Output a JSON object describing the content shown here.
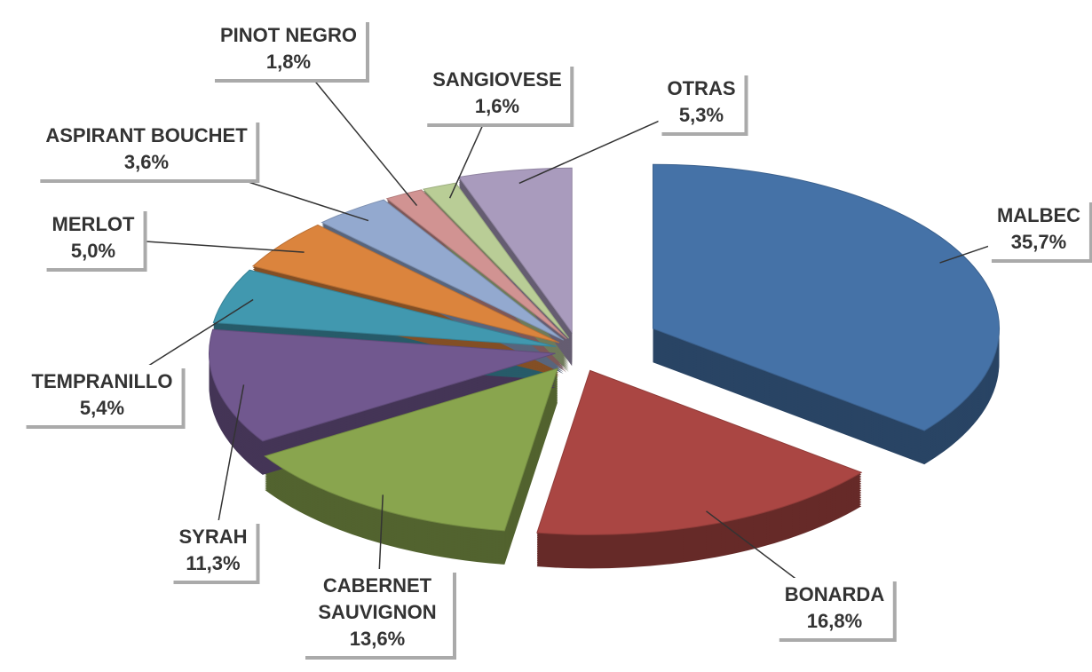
{
  "chart_data": {
    "type": "pie",
    "categories": [
      "MALBEC",
      "BONARDA",
      "CABERNET SAUVIGNON",
      "SYRAH",
      "TEMPRANILLO",
      "MERLOT",
      "ASPIRANT BOUCHET",
      "PINOT NEGRO",
      "SANGIOVESE",
      "OTRAS"
    ],
    "values": [
      35.7,
      16.8,
      13.6,
      11.3,
      5.4,
      5.0,
      3.6,
      1.8,
      1.6,
      5.3
    ],
    "value_labels": [
      "35,7%",
      "16,8%",
      "13,6%",
      "11,3%",
      "5,4%",
      "5,0%",
      "3,6%",
      "1,8%",
      "1,6%",
      "5,3%"
    ],
    "colors": [
      "#4572a7",
      "#aa4643",
      "#89a54e",
      "#71588f",
      "#4198af",
      "#db843d",
      "#93a9cf",
      "#d19392",
      "#b9cd96",
      "#a99bbd"
    ]
  }
}
